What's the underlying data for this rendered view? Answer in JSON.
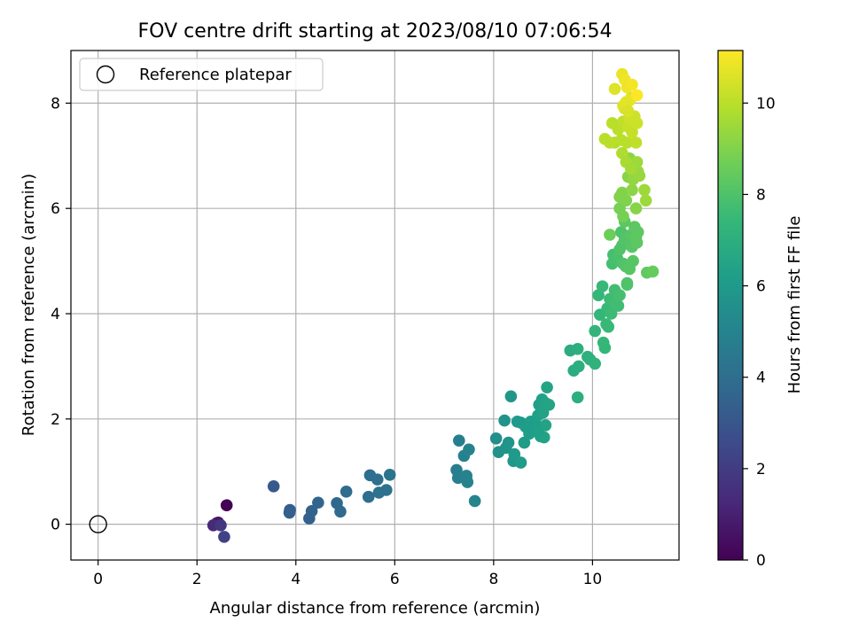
{
  "chart_data": {
    "type": "scatter",
    "title": "FOV centre drift starting at 2023/08/10 07:06:54",
    "xlabel": "Angular distance from reference (arcmin)",
    "ylabel": "Rotation from reference (arcmin)",
    "xlim": [
      -0.55,
      11.75
    ],
    "ylim": [
      -0.68,
      9.0
    ],
    "xticks": [
      0,
      2,
      4,
      6,
      8,
      10
    ],
    "yticks": [
      0,
      2,
      4,
      6,
      8
    ],
    "grid": true,
    "legend": {
      "position": "top-left",
      "entries": [
        "Reference platepar"
      ]
    },
    "reference_point": {
      "x": 0,
      "y": 0
    },
    "colorbar": {
      "label": "Hours from first FF file",
      "range": [
        0,
        11.15
      ],
      "ticks": [
        0,
        2,
        4,
        6,
        8,
        10
      ],
      "colormap": "viridis"
    },
    "colormap_stops": [
      "#440154",
      "#482878",
      "#3e4989",
      "#31688e",
      "#26828e",
      "#1f9e89",
      "#35b779",
      "#6ece58",
      "#b5de2b",
      "#fde725"
    ],
    "marker_color": "#000000",
    "series": [
      {
        "points": [
          {
            "x": 2.6,
            "y": 0.36,
            "c": 0.0
          },
          {
            "x": 2.43,
            "y": 0.03,
            "c": 0.3
          },
          {
            "x": 2.4,
            "y": 0.02,
            "c": 0.7
          },
          {
            "x": 2.33,
            "y": -0.02,
            "c": 1.3
          },
          {
            "x": 2.48,
            "y": -0.02,
            "c": 1.8
          },
          {
            "x": 2.55,
            "y": -0.24,
            "c": 2.2
          },
          {
            "x": 3.55,
            "y": 0.72,
            "c": 3.1
          },
          {
            "x": 3.88,
            "y": 0.27,
            "c": 3.3
          },
          {
            "x": 3.87,
            "y": 0.22,
            "c": 3.4
          },
          {
            "x": 4.27,
            "y": 0.11,
            "c": 3.4
          },
          {
            "x": 4.32,
            "y": 0.25,
            "c": 3.5
          },
          {
            "x": 4.45,
            "y": 0.41,
            "c": 3.6
          },
          {
            "x": 4.83,
            "y": 0.4,
            "c": 3.7
          },
          {
            "x": 4.9,
            "y": 0.24,
            "c": 3.8
          },
          {
            "x": 5.02,
            "y": 0.62,
            "c": 3.9
          },
          {
            "x": 5.47,
            "y": 0.52,
            "c": 4.0
          },
          {
            "x": 5.5,
            "y": 0.93,
            "c": 4.0
          },
          {
            "x": 5.65,
            "y": 0.85,
            "c": 4.1
          },
          {
            "x": 5.68,
            "y": 0.6,
            "c": 4.2
          },
          {
            "x": 5.83,
            "y": 0.65,
            "c": 4.2
          },
          {
            "x": 5.9,
            "y": 0.94,
            "c": 4.3
          },
          {
            "x": 7.25,
            "y": 1.03,
            "c": 4.7
          },
          {
            "x": 7.3,
            "y": 1.59,
            "c": 4.8
          },
          {
            "x": 7.28,
            "y": 0.88,
            "c": 4.8
          },
          {
            "x": 7.4,
            "y": 1.3,
            "c": 4.9
          },
          {
            "x": 7.45,
            "y": 0.85,
            "c": 4.9
          },
          {
            "x": 7.47,
            "y": 0.8,
            "c": 5.0
          },
          {
            "x": 7.5,
            "y": 1.42,
            "c": 5.0
          },
          {
            "x": 7.62,
            "y": 0.44,
            "c": 5.1
          },
          {
            "x": 7.45,
            "y": 0.92,
            "c": 5.0
          },
          {
            "x": 8.05,
            "y": 1.63,
            "c": 5.5
          },
          {
            "x": 8.1,
            "y": 1.37,
            "c": 5.6
          },
          {
            "x": 8.22,
            "y": 1.97,
            "c": 5.7
          },
          {
            "x": 8.25,
            "y": 1.45,
            "c": 5.7
          },
          {
            "x": 8.3,
            "y": 1.55,
            "c": 5.8
          },
          {
            "x": 8.35,
            "y": 2.43,
            "c": 5.9
          },
          {
            "x": 8.4,
            "y": 1.2,
            "c": 5.9
          },
          {
            "x": 8.42,
            "y": 1.33,
            "c": 6.0
          },
          {
            "x": 8.48,
            "y": 1.95,
            "c": 6.0
          },
          {
            "x": 8.55,
            "y": 1.93,
            "c": 6.0
          },
          {
            "x": 8.55,
            "y": 1.17,
            "c": 6.1
          },
          {
            "x": 8.62,
            "y": 1.55,
            "c": 6.1
          },
          {
            "x": 8.65,
            "y": 1.85,
            "c": 6.1
          },
          {
            "x": 8.72,
            "y": 1.72,
            "c": 6.2
          },
          {
            "x": 8.75,
            "y": 1.95,
            "c": 6.2
          },
          {
            "x": 8.8,
            "y": 1.82,
            "c": 6.2
          },
          {
            "x": 8.85,
            "y": 1.9,
            "c": 6.2
          },
          {
            "x": 8.9,
            "y": 2.07,
            "c": 6.3
          },
          {
            "x": 8.92,
            "y": 2.27,
            "c": 6.3
          },
          {
            "x": 8.95,
            "y": 1.67,
            "c": 6.3
          },
          {
            "x": 8.98,
            "y": 2.37,
            "c": 6.3
          },
          {
            "x": 9.0,
            "y": 2.12,
            "c": 6.4
          },
          {
            "x": 9.02,
            "y": 1.65,
            "c": 6.4
          },
          {
            "x": 9.05,
            "y": 1.88,
            "c": 6.4
          },
          {
            "x": 9.05,
            "y": 2.3,
            "c": 6.4
          },
          {
            "x": 9.08,
            "y": 2.6,
            "c": 6.5
          },
          {
            "x": 9.12,
            "y": 2.27,
            "c": 6.5
          },
          {
            "x": 8.9,
            "y": 1.75,
            "c": 6.3
          },
          {
            "x": 9.55,
            "y": 3.3,
            "c": 6.9
          },
          {
            "x": 9.62,
            "y": 2.92,
            "c": 6.9
          },
          {
            "x": 9.7,
            "y": 3.33,
            "c": 7.0
          },
          {
            "x": 9.72,
            "y": 3.0,
            "c": 7.0
          },
          {
            "x": 9.7,
            "y": 2.41,
            "c": 7.0
          },
          {
            "x": 9.9,
            "y": 3.18,
            "c": 7.1
          },
          {
            "x": 9.95,
            "y": 3.13,
            "c": 7.1
          },
          {
            "x": 10.05,
            "y": 3.05,
            "c": 7.2
          },
          {
            "x": 10.05,
            "y": 3.67,
            "c": 7.3
          },
          {
            "x": 10.12,
            "y": 4.35,
            "c": 7.4
          },
          {
            "x": 10.15,
            "y": 3.98,
            "c": 7.4
          },
          {
            "x": 10.2,
            "y": 4.52,
            "c": 7.5
          },
          {
            "x": 10.22,
            "y": 3.45,
            "c": 7.4
          },
          {
            "x": 10.25,
            "y": 3.35,
            "c": 7.4
          },
          {
            "x": 10.28,
            "y": 3.8,
            "c": 7.5
          },
          {
            "x": 10.3,
            "y": 4.1,
            "c": 7.5
          },
          {
            "x": 10.32,
            "y": 3.75,
            "c": 7.5
          },
          {
            "x": 10.35,
            "y": 4.28,
            "c": 7.6
          },
          {
            "x": 10.38,
            "y": 4.0,
            "c": 7.6
          },
          {
            "x": 10.4,
            "y": 4.95,
            "c": 7.8
          },
          {
            "x": 10.42,
            "y": 5.12,
            "c": 7.8
          },
          {
            "x": 10.45,
            "y": 4.2,
            "c": 7.7
          },
          {
            "x": 10.45,
            "y": 4.45,
            "c": 7.7
          },
          {
            "x": 10.5,
            "y": 5.05,
            "c": 7.9
          },
          {
            "x": 10.52,
            "y": 4.15,
            "c": 7.7
          },
          {
            "x": 10.55,
            "y": 4.35,
            "c": 7.8
          },
          {
            "x": 10.58,
            "y": 5.55,
            "c": 8.0
          },
          {
            "x": 10.6,
            "y": 5.3,
            "c": 8.0
          },
          {
            "x": 10.62,
            "y": 4.95,
            "c": 8.0
          },
          {
            "x": 10.65,
            "y": 5.4,
            "c": 8.1
          },
          {
            "x": 10.67,
            "y": 4.9,
            "c": 8.1
          },
          {
            "x": 10.7,
            "y": 4.58,
            "c": 8.0
          },
          {
            "x": 10.72,
            "y": 5.35,
            "c": 8.1
          },
          {
            "x": 10.75,
            "y": 4.85,
            "c": 8.2
          },
          {
            "x": 10.78,
            "y": 5.5,
            "c": 8.2
          },
          {
            "x": 10.8,
            "y": 5.27,
            "c": 8.2
          },
          {
            "x": 10.82,
            "y": 5.0,
            "c": 8.2
          },
          {
            "x": 10.85,
            "y": 5.65,
            "c": 8.3
          },
          {
            "x": 10.88,
            "y": 5.45,
            "c": 8.3
          },
          {
            "x": 10.9,
            "y": 5.35,
            "c": 8.3
          },
          {
            "x": 10.92,
            "y": 5.55,
            "c": 8.3
          },
          {
            "x": 10.55,
            "y": 5.22,
            "c": 8.0
          },
          {
            "x": 10.65,
            "y": 5.75,
            "c": 8.3
          },
          {
            "x": 11.1,
            "y": 4.78,
            "c": 8.4
          },
          {
            "x": 11.22,
            "y": 4.8,
            "c": 8.5
          },
          {
            "x": 10.7,
            "y": 4.55,
            "c": 8.0
          },
          {
            "x": 10.35,
            "y": 5.5,
            "c": 8.6
          },
          {
            "x": 10.55,
            "y": 6.0,
            "c": 8.8
          },
          {
            "x": 10.6,
            "y": 6.3,
            "c": 9.0
          },
          {
            "x": 10.62,
            "y": 5.85,
            "c": 8.8
          },
          {
            "x": 10.68,
            "y": 6.15,
            "c": 9.0
          },
          {
            "x": 10.72,
            "y": 6.6,
            "c": 9.1
          },
          {
            "x": 10.75,
            "y": 6.95,
            "c": 9.2
          },
          {
            "x": 10.8,
            "y": 6.35,
            "c": 9.2
          },
          {
            "x": 10.82,
            "y": 6.55,
            "c": 9.3
          },
          {
            "x": 10.85,
            "y": 6.82,
            "c": 9.3
          },
          {
            "x": 10.88,
            "y": 6.0,
            "c": 9.1
          },
          {
            "x": 10.92,
            "y": 6.7,
            "c": 9.4
          },
          {
            "x": 10.95,
            "y": 6.62,
            "c": 9.4
          },
          {
            "x": 11.05,
            "y": 6.35,
            "c": 9.5
          },
          {
            "x": 11.08,
            "y": 6.15,
            "c": 9.5
          },
          {
            "x": 10.9,
            "y": 6.88,
            "c": 9.5
          },
          {
            "x": 10.55,
            "y": 6.22,
            "c": 9.0
          },
          {
            "x": 10.4,
            "y": 7.62,
            "c": 10.0
          },
          {
            "x": 10.45,
            "y": 7.25,
            "c": 9.9
          },
          {
            "x": 10.52,
            "y": 7.5,
            "c": 10.0
          },
          {
            "x": 10.58,
            "y": 7.3,
            "c": 10.0
          },
          {
            "x": 10.6,
            "y": 7.05,
            "c": 9.8
          },
          {
            "x": 10.62,
            "y": 7.65,
            "c": 10.1
          },
          {
            "x": 10.65,
            "y": 7.9,
            "c": 10.2
          },
          {
            "x": 10.7,
            "y": 7.25,
            "c": 10.0
          },
          {
            "x": 10.72,
            "y": 7.55,
            "c": 10.2
          },
          {
            "x": 10.75,
            "y": 7.7,
            "c": 10.3
          },
          {
            "x": 10.78,
            "y": 8.1,
            "c": 10.5
          },
          {
            "x": 10.8,
            "y": 7.45,
            "c": 10.2
          },
          {
            "x": 10.85,
            "y": 7.75,
            "c": 10.3
          },
          {
            "x": 10.88,
            "y": 7.25,
            "c": 10.1
          },
          {
            "x": 10.9,
            "y": 7.62,
            "c": 10.3
          },
          {
            "x": 10.25,
            "y": 7.32,
            "c": 10.0
          },
          {
            "x": 10.35,
            "y": 7.25,
            "c": 10.0
          },
          {
            "x": 10.68,
            "y": 6.88,
            "c": 9.7
          },
          {
            "x": 10.78,
            "y": 6.75,
            "c": 9.6
          },
          {
            "x": 10.45,
            "y": 8.27,
            "c": 10.6
          },
          {
            "x": 10.6,
            "y": 8.55,
            "c": 10.8
          },
          {
            "x": 10.65,
            "y": 8.45,
            "c": 10.9
          },
          {
            "x": 10.7,
            "y": 8.3,
            "c": 10.9
          },
          {
            "x": 10.75,
            "y": 8.05,
            "c": 10.8
          },
          {
            "x": 10.8,
            "y": 8.35,
            "c": 11.0
          },
          {
            "x": 10.9,
            "y": 8.15,
            "c": 11.1
          },
          {
            "x": 10.62,
            "y": 7.95,
            "c": 10.6
          },
          {
            "x": 10.68,
            "y": 8.02,
            "c": 10.7
          },
          {
            "x": 10.72,
            "y": 7.85,
            "c": 10.5
          }
        ]
      }
    ]
  }
}
